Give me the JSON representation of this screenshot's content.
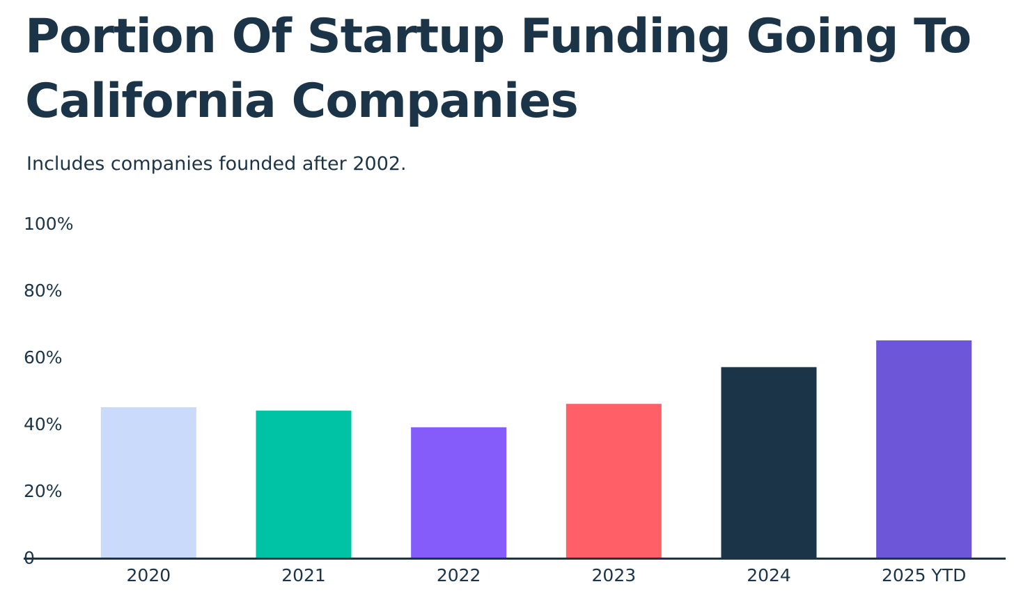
{
  "chart_data": {
    "type": "bar",
    "title": "Portion Of Startup Funding Going To California Companies",
    "subtitle": "Includes companies founded after 2002.",
    "categories": [
      "2020",
      "2021",
      "2022",
      "2023",
      "2024",
      "2025 YTD"
    ],
    "values": [
      45,
      44,
      39,
      46,
      57,
      65
    ],
    "ylim": [
      0,
      100
    ],
    "yticks": [
      0,
      20,
      40,
      60,
      80,
      100
    ],
    "ytick_labels": [
      "0",
      "20%",
      "40%",
      "60%",
      "80%",
      "100%"
    ],
    "colors": [
      "#c9dafa",
      "#00c3a5",
      "#855cfa",
      "#ff5f66",
      "#1b3447",
      "#6e56d8"
    ],
    "axis_color": "#1b3447",
    "grid": false,
    "legend": "none"
  }
}
